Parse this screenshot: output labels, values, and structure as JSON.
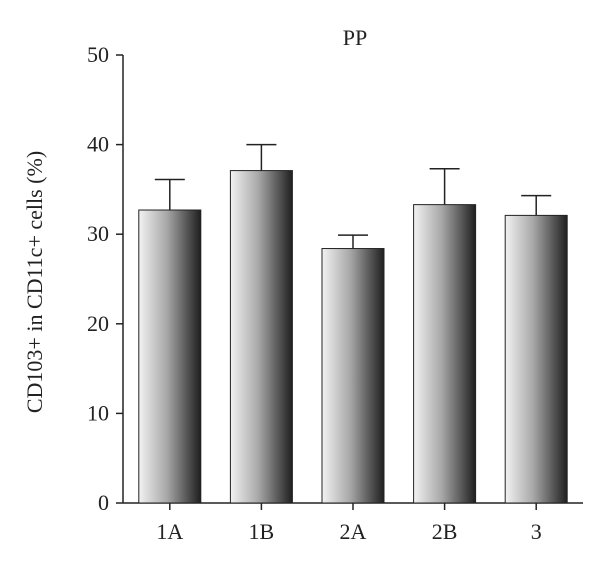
{
  "chart_data": {
    "type": "bar",
    "title": "PP",
    "xlabel": "",
    "ylabel": "CD103+ in CD11c+ cells (%)",
    "categories": [
      "1A",
      "1B",
      "2A",
      "2B",
      "3"
    ],
    "values": [
      32.7,
      37.1,
      28.4,
      33.3,
      32.1
    ],
    "errors": [
      3.4,
      2.9,
      1.5,
      4.0,
      2.2
    ],
    "ylim": [
      0,
      50
    ],
    "yticks": [
      0,
      10,
      20,
      30,
      40,
      50
    ],
    "grid": false,
    "legend": "none",
    "colors": {
      "bar_light": "#f2f2f2",
      "bar_dark": "#1f1f1f",
      "axis": "#222222"
    }
  }
}
